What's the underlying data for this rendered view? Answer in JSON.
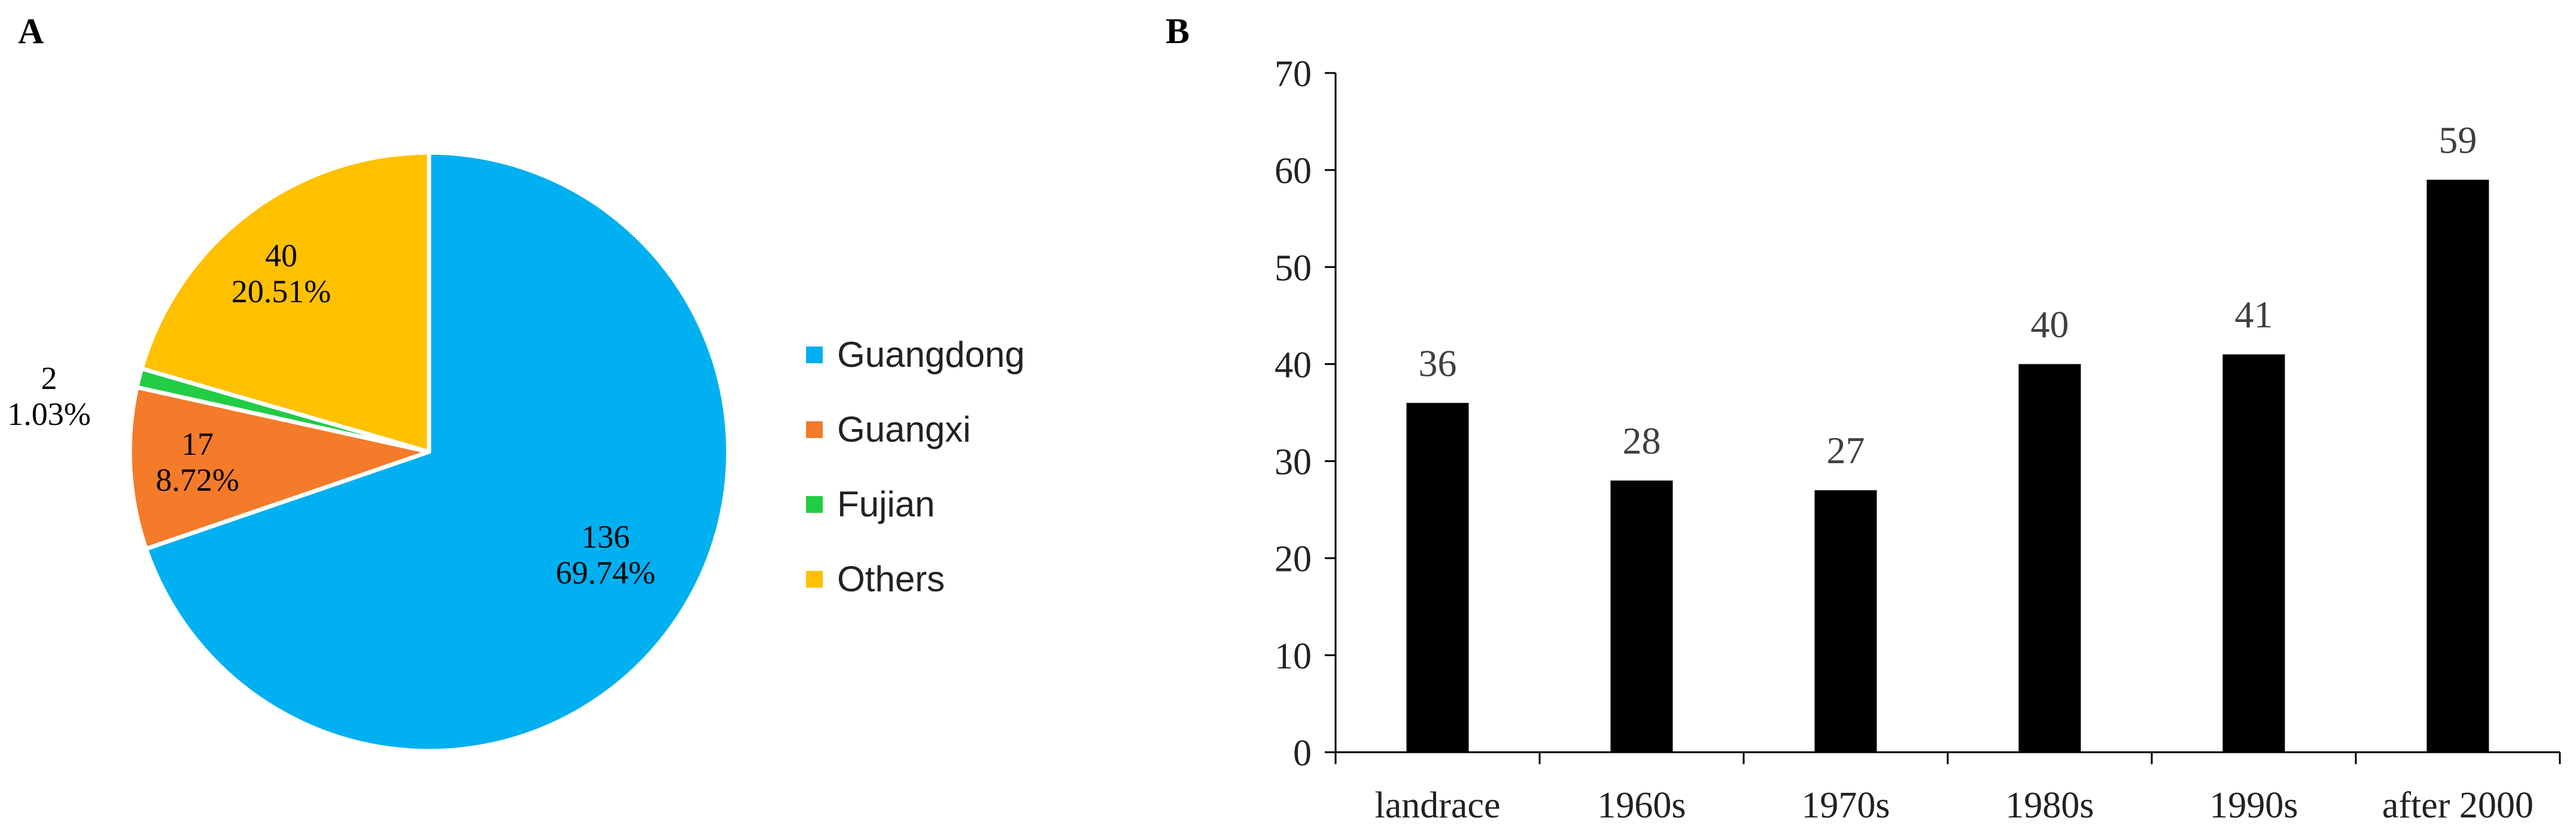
{
  "panels": {
    "a_label": "A",
    "b_label": "B"
  },
  "chart_data": [
    {
      "type": "pie",
      "panel": "A",
      "slices": [
        {
          "name": "Guangdong",
          "value": 136,
          "percent": "69.74%",
          "color": "#00B0F0"
        },
        {
          "name": "Guangxi",
          "value": 17,
          "percent": "8.72%",
          "color": "#F47B2A"
        },
        {
          "name": "Fujian",
          "value": 2,
          "percent": "1.03%",
          "color": "#22CC44"
        },
        {
          "name": "Others",
          "value": 40,
          "percent": "20.51%",
          "color": "#FFC000"
        }
      ],
      "start_angle": "12 o'clock, clockwise",
      "legend_position": "right"
    },
    {
      "type": "bar",
      "panel": "B",
      "categories": [
        "landrace",
        "1960s",
        "1970s",
        "1980s",
        "1990s",
        "after 2000"
      ],
      "values": [
        36,
        28,
        27,
        40,
        41,
        59
      ],
      "data_labels": [
        "36",
        "28",
        "27",
        "40",
        "41",
        "59"
      ],
      "ylim": [
        0,
        70
      ],
      "yticks": [
        "0",
        "10",
        "20",
        "30",
        "40",
        "50",
        "60",
        "70"
      ],
      "bar_color": "#000000",
      "grid": false
    }
  ]
}
